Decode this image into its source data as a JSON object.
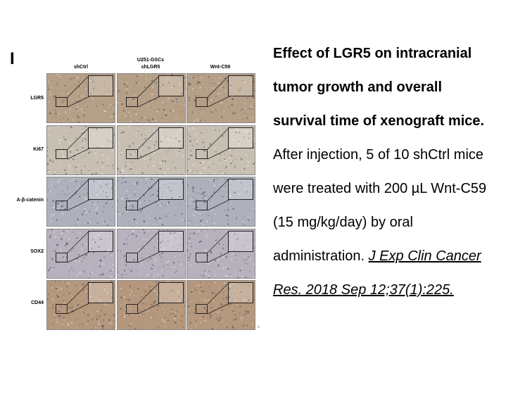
{
  "figure": {
    "panel_letter": "I",
    "group_label": "U251-GSCs",
    "columns": [
      "shCtrl",
      "shLGR5",
      "Wnt-C59"
    ],
    "rows": [
      "LGR5",
      "Ki67",
      "A-β-catenin",
      "SOX2",
      "CD44"
    ],
    "tiny_mark": ".i"
  },
  "caption": {
    "title_lines": [
      "Effect of LGR5 on intracranial",
      "tumor growth and overall",
      "survival time of xenograft mice."
    ],
    "body_lines": [
      "After injection, 5 of 10 shCtrl mice",
      "were treated with 200 µL Wnt-C59",
      "(15 mg/kg/day) by oral"
    ],
    "body_last_prefix": "administration. ",
    "citation_line1": "J Exp Clin Cancer",
    "citation_line2": "Res. 2018 Sep 12;37(1):225."
  },
  "colors": {
    "row_tints": [
      "#b59f86",
      "#c8bfb3",
      "#aeb1bc",
      "#b7b1bd",
      "#b4977c"
    ]
  }
}
